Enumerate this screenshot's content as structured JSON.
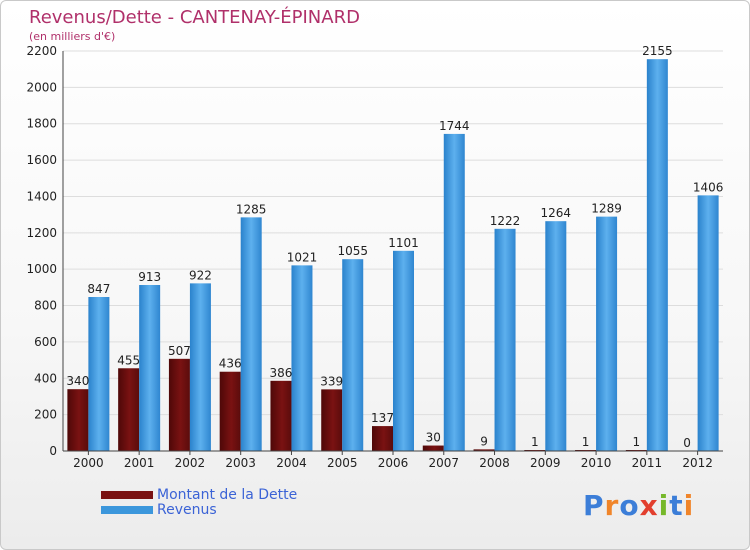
{
  "title": "Revenus/Dette - CANTENAY-ÉPINARD",
  "subtitle": "(en milliers d'€)",
  "colors": {
    "title": "#b0306a",
    "dette": "#7a1212",
    "revenus": "#3c97dc",
    "grid": "#dddddd",
    "legend_text": "#3b63d6"
  },
  "legend": [
    {
      "label": "Montant de la Dette",
      "color": "#7a1212"
    },
    {
      "label": "Revenus",
      "color": "#3c97dc"
    }
  ],
  "logo": {
    "text": "Proxiti",
    "letters": [
      "P",
      "r",
      "o",
      "x",
      "i",
      "t",
      "i"
    ],
    "colors": [
      "#3c7ed8",
      "#f0852a",
      "#3c7ed8",
      "#e23f2e",
      "#76b82a",
      "#3c7ed8",
      "#f0852a"
    ]
  },
  "chart_data": {
    "type": "bar",
    "title": "Revenus/Dette - CANTENAY-ÉPINARD",
    "ylabel": "(en milliers d'€)",
    "xlabel": "",
    "ylim": [
      0,
      2200
    ],
    "yticks": [
      0,
      200,
      400,
      600,
      800,
      1000,
      1200,
      1400,
      1600,
      1800,
      2000,
      2200
    ],
    "grid": true,
    "legend_position": "bottom-left",
    "categories": [
      "2000",
      "2001",
      "2002",
      "2003",
      "2004",
      "2005",
      "2006",
      "2007",
      "2008",
      "2009",
      "2010",
      "2011",
      "2012"
    ],
    "series": [
      {
        "name": "Montant de la Dette",
        "values": [
          340,
          455,
          507,
          436,
          386,
          339,
          137,
          30,
          9,
          1,
          1,
          1,
          0
        ]
      },
      {
        "name": "Revenus",
        "values": [
          847,
          913,
          922,
          1285,
          1021,
          1055,
          1101,
          1744,
          1222,
          1264,
          1289,
          2155,
          1406
        ]
      }
    ]
  }
}
